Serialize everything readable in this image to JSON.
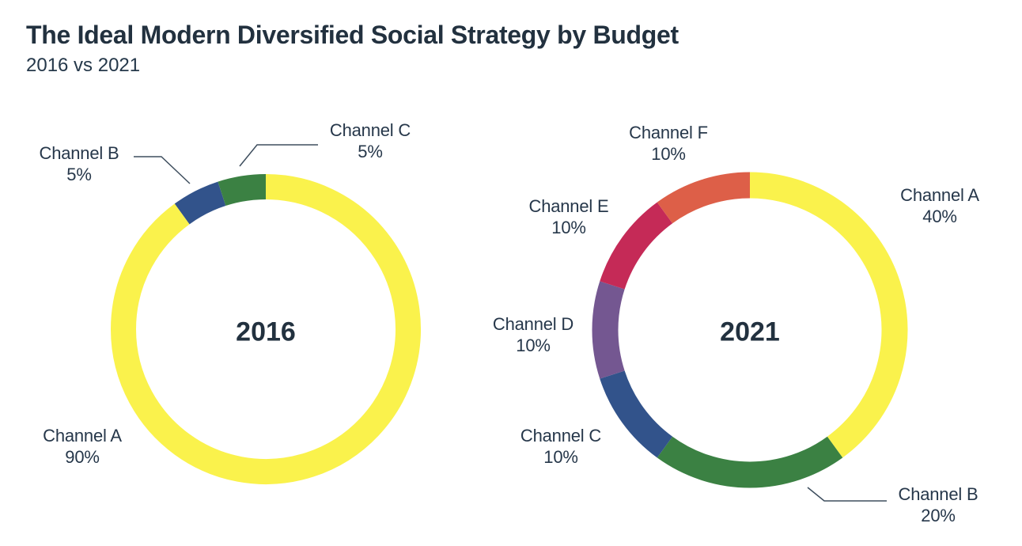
{
  "header": {
    "title": "The Ideal Modern Diversified Social Strategy by Budget",
    "subtitle": "2016 vs 2021"
  },
  "chart_data": [
    {
      "type": "pie",
      "variant": "donut",
      "center_label": "2016",
      "labels": [
        "Channel A",
        "Channel B",
        "Channel C"
      ],
      "values": [
        90,
        5,
        5
      ],
      "values_display": [
        "90%",
        "5%",
        "5%"
      ],
      "colors": [
        "#FAF24C",
        "#32538B",
        "#3B8143"
      ],
      "start_angle_deg": 0,
      "direction": "clockwise",
      "legend": "none",
      "labels_position": "outside-callouts"
    },
    {
      "type": "pie",
      "variant": "donut",
      "center_label": "2021",
      "labels": [
        "Channel A",
        "Channel B",
        "Channel C",
        "Channel D",
        "Channel E",
        "Channel F"
      ],
      "values": [
        40,
        20,
        10,
        10,
        10,
        10
      ],
      "values_display": [
        "40%",
        "20%",
        "10%",
        "10%",
        "10%",
        "10%"
      ],
      "colors": [
        "#FAF24C",
        "#3B8143",
        "#32538B",
        "#745791",
        "#C52A57",
        "#DD5F48"
      ],
      "start_angle_deg": 0,
      "direction": "clockwise",
      "legend": "none",
      "labels_position": "outside-callouts"
    }
  ],
  "style": {
    "text_color": "#24364A",
    "title_color": "#22313F",
    "leader_line_color": "#3E4E5E",
    "background": "#FFFFFF"
  }
}
